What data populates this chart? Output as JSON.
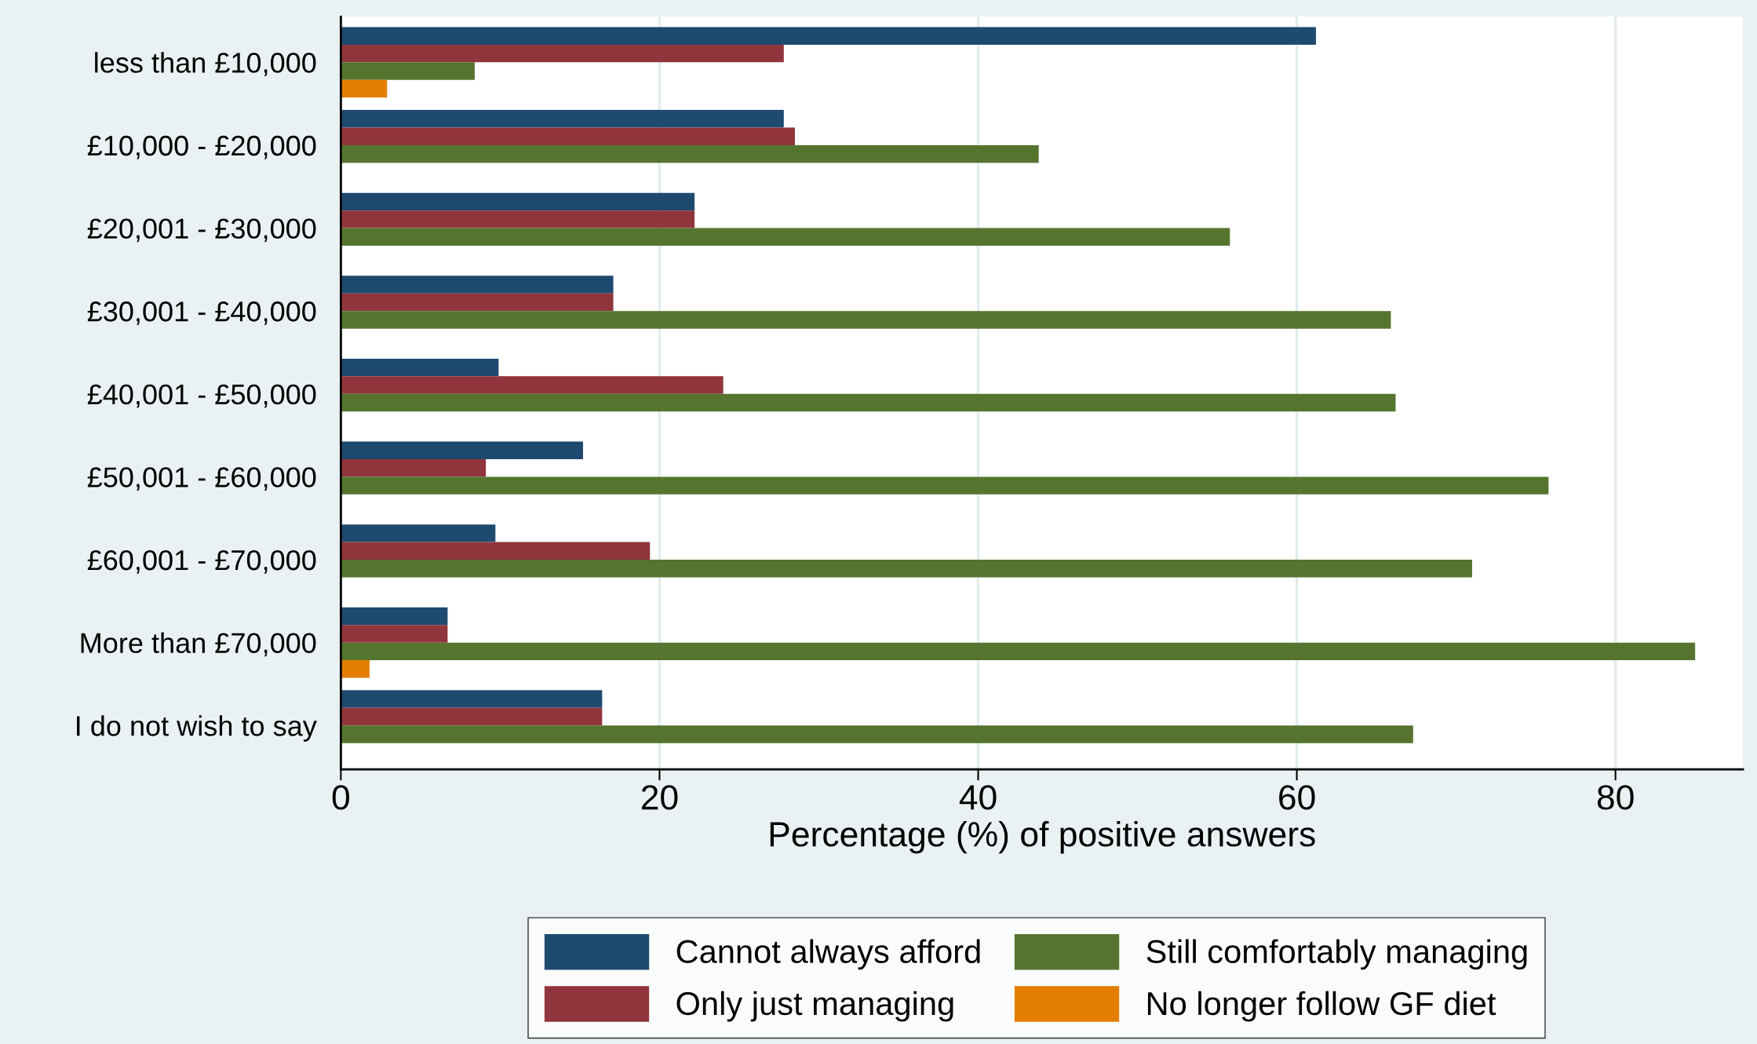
{
  "chart_data": {
    "type": "bar",
    "orientation": "horizontal",
    "xlabel": "Percentage (%) of positive answers",
    "categories": [
      "less than £10,000",
      "£10,000 - £20,000",
      "£20,001 - £30,000",
      "£30,001 - £40,000",
      "£40,001 - £50,000",
      "£50,001 - £60,000",
      "£60,001 - £70,000",
      "More than £70,000",
      "I do not wish to say"
    ],
    "series": [
      {
        "name": "Cannot always afford",
        "color": "#1f4a70",
        "values": [
          61.2,
          27.8,
          22.2,
          17.1,
          9.9,
          15.2,
          9.7,
          6.7,
          16.4
        ]
      },
      {
        "name": "Only just managing",
        "color": "#90353b",
        "values": [
          27.8,
          28.5,
          22.2,
          17.1,
          24.0,
          9.1,
          19.4,
          6.7,
          16.4
        ]
      },
      {
        "name": "Still comfortably managing",
        "color": "#55752f",
        "values": [
          8.4,
          43.8,
          55.8,
          65.9,
          66.2,
          75.8,
          71.0,
          85.0,
          67.3
        ]
      },
      {
        "name": "No longer follow GF diet",
        "color": "#e37e00",
        "values": [
          2.9,
          null,
          null,
          null,
          null,
          null,
          null,
          1.8,
          null
        ]
      }
    ],
    "xlim": [
      0,
      88
    ],
    "xticks": [
      0,
      20,
      40,
      60,
      80
    ],
    "grid": "x",
    "legend": "bottom"
  }
}
